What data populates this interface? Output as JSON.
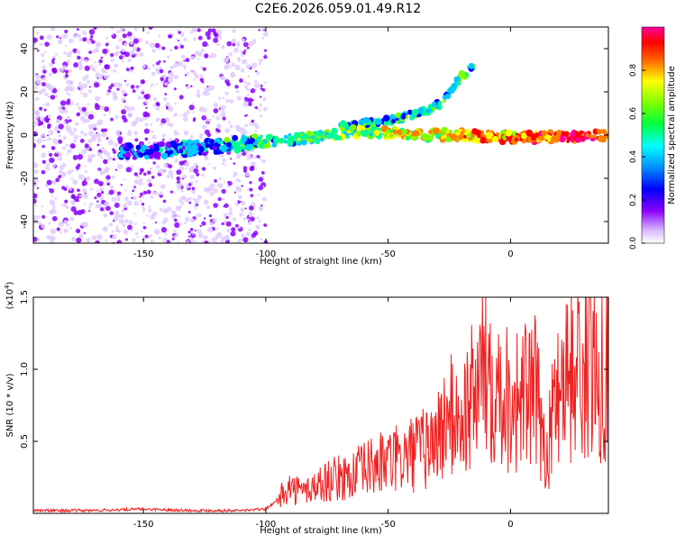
{
  "title": "C2E6.2026.059.01.49.R12",
  "chart_data": [
    {
      "type": "heatmap",
      "xlabel": "Height of straight line (km)",
      "ylabel": "Frequency (Hz)",
      "xlim": [
        -195,
        40
      ],
      "ylim": [
        -50,
        50
      ],
      "xticks": [
        -150,
        -100,
        -50,
        0
      ],
      "yticks": [
        -40,
        -20,
        0,
        20,
        40
      ],
      "noise_region_x": [
        -195,
        -100
      ],
      "colorbar": {
        "label": "Normalized spectral amplitude",
        "range": [
          0,
          1
        ],
        "ticks": [
          "0.0",
          "0.2",
          "0.4",
          "0.6",
          "0.8"
        ],
        "colors": [
          "#e8d8ff",
          "#8a00ff",
          "#0000ff",
          "#00c8ff",
          "#00ff90",
          "#7cff00",
          "#ffff00",
          "#ff8000",
          "#ff0000",
          "#ff00a0"
        ]
      },
      "tracks": [
        {
          "points": [
            [
              -160,
              -8
            ],
            [
              -140,
              -7
            ],
            [
              -120,
              -5
            ],
            [
              -100,
              -3
            ],
            [
              -80,
              -1
            ],
            [
              -60,
              2
            ],
            [
              -40,
              0
            ],
            [
              -20,
              0
            ],
            [
              0,
              -1
            ],
            [
              20,
              -1
            ],
            [
              40,
              0
            ]
          ]
        },
        {
          "points": [
            [
              -70,
              4
            ],
            [
              -55,
              6
            ],
            [
              -45,
              8
            ],
            [
              -35,
              11
            ],
            [
              -28,
              15
            ],
            [
              -25,
              20
            ],
            [
              -20,
              27
            ],
            [
              -15,
              32
            ]
          ]
        }
      ]
    },
    {
      "type": "line",
      "xlabel": "Height of straight line (km)",
      "ylabel": "SNR (10 * v/v)",
      "scale_note": "(x10^4)",
      "xlim": [
        -195,
        40
      ],
      "ylim": [
        0,
        1.5
      ],
      "xticks": [
        -150,
        -100,
        -50,
        0
      ],
      "yticks": [
        "0.5",
        "1.0",
        "1.5"
      ],
      "color": "#ee2222",
      "series": [
        {
          "x": [
            -195,
            -170,
            -150,
            -130,
            -110,
            -100,
            -95,
            -92,
            -85,
            -75,
            -65,
            -55,
            -45,
            -40,
            -35,
            -30,
            -25,
            -20,
            -15,
            -10,
            -5,
            0,
            10,
            15,
            20,
            30,
            40
          ],
          "y": [
            0.02,
            0.02,
            0.03,
            0.02,
            0.02,
            0.03,
            0.1,
            0.25,
            0.2,
            0.3,
            0.35,
            0.45,
            0.5,
            0.55,
            0.6,
            0.7,
            0.9,
            0.85,
            1.1,
            1.4,
            1.2,
            1.05,
            1.1,
            0.55,
            1.3,
            1.35,
            1.4
          ]
        }
      ]
    }
  ]
}
